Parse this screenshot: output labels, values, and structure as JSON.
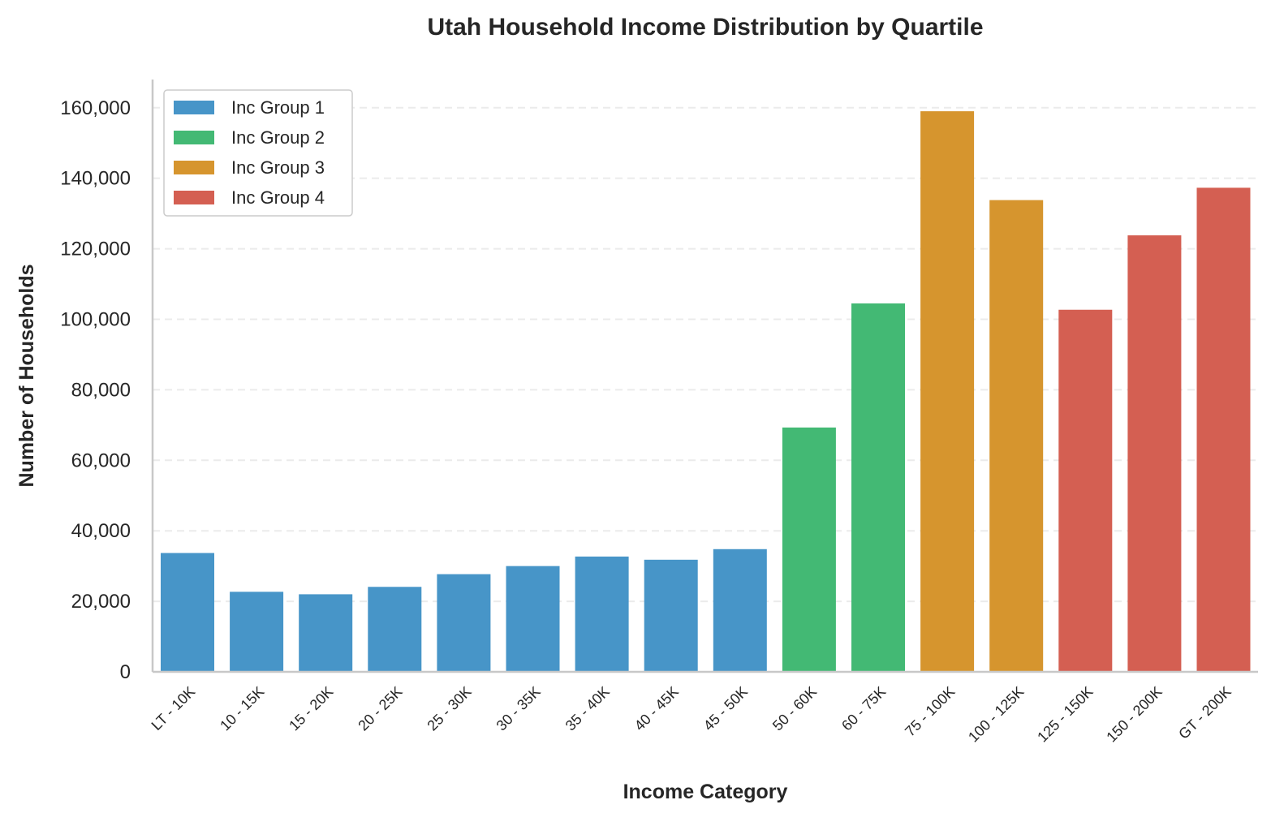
{
  "chart_data": {
    "type": "bar",
    "title": "Utah Household Income Distribution by Quartile",
    "xlabel": "Income Category",
    "ylabel": "Number of Households",
    "ylim": [
      0,
      168000
    ],
    "yticks": [
      0,
      20000,
      40000,
      60000,
      80000,
      100000,
      120000,
      140000,
      160000
    ],
    "ytick_labels": [
      "0",
      "20,000",
      "40,000",
      "60,000",
      "80,000",
      "100,000",
      "120,000",
      "140,000",
      "160,000"
    ],
    "grid": "horizontal-dashed",
    "legend_position": "top-left",
    "categories": [
      "LT - 10K",
      "10 - 15K",
      "15 - 20K",
      "20 - 25K",
      "25 - 30K",
      "30 - 35K",
      "35 - 40K",
      "40 - 45K",
      "45 - 50K",
      "50 - 60K",
      "60 - 75K",
      "75 - 100K",
      "100 - 125K",
      "125 - 150K",
      "150 - 200K",
      "GT - 200K"
    ],
    "values": [
      33700,
      22700,
      22000,
      24100,
      27700,
      30000,
      32700,
      31800,
      34800,
      69300,
      104500,
      159000,
      133800,
      102700,
      123800,
      137300
    ],
    "groups": [
      0,
      0,
      0,
      0,
      0,
      0,
      0,
      0,
      0,
      1,
      1,
      2,
      2,
      3,
      3,
      3
    ],
    "series": [
      {
        "name": "Inc Group 1",
        "color": "#4795c8"
      },
      {
        "name": "Inc Group 2",
        "color": "#43b974"
      },
      {
        "name": "Inc Group 3",
        "color": "#d6952e"
      },
      {
        "name": "Inc Group 4",
        "color": "#d45f52"
      }
    ]
  }
}
